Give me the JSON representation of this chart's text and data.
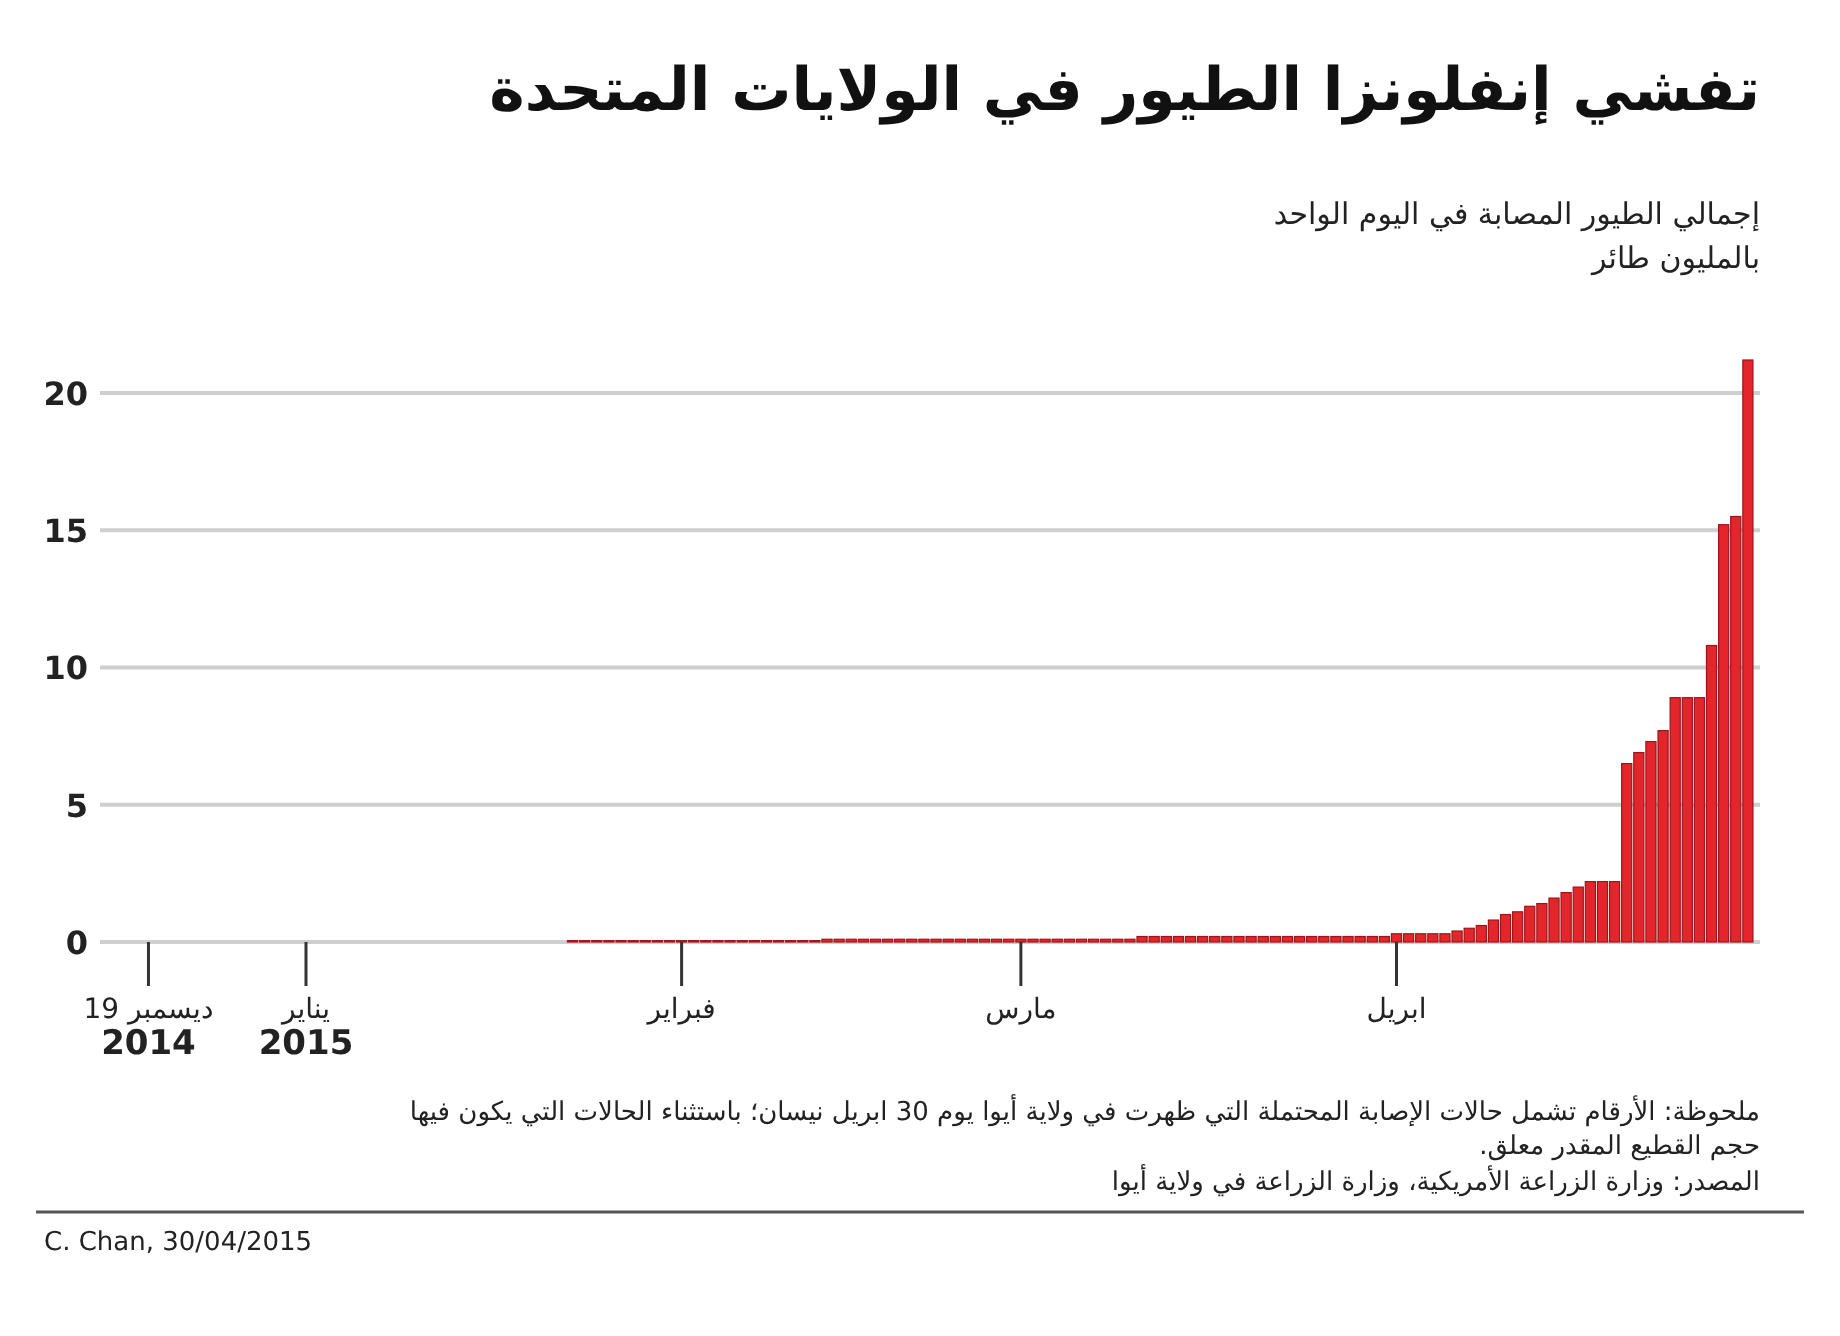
{
  "chart_data": {
    "type": "bar",
    "title": "تفشي إنفلونزا الطيور في الولايات المتحدة",
    "subtitle": "إجمالي الطيور المصابة في اليوم الواحد",
    "ylabel": "بالمليون طائر",
    "x": [
      "2015-01-23",
      "2015-01-24",
      "2015-01-25",
      "2015-01-26",
      "2015-01-27",
      "2015-01-28",
      "2015-01-29",
      "2015-01-30",
      "2015-01-31",
      "2015-02-01",
      "2015-02-02",
      "2015-02-03",
      "2015-02-04",
      "2015-02-05",
      "2015-02-06",
      "2015-02-07",
      "2015-02-08",
      "2015-02-09",
      "2015-02-10",
      "2015-02-11",
      "2015-02-12",
      "2015-02-13",
      "2015-02-14",
      "2015-02-15",
      "2015-02-16",
      "2015-02-17",
      "2015-02-18",
      "2015-02-19",
      "2015-02-20",
      "2015-02-21",
      "2015-02-22",
      "2015-02-23",
      "2015-02-24",
      "2015-02-25",
      "2015-02-26",
      "2015-02-27",
      "2015-02-28",
      "2015-03-01",
      "2015-03-02",
      "2015-03-03",
      "2015-03-04",
      "2015-03-05",
      "2015-03-06",
      "2015-03-07",
      "2015-03-08",
      "2015-03-09",
      "2015-03-10",
      "2015-03-11",
      "2015-03-12",
      "2015-03-13",
      "2015-03-14",
      "2015-03-15",
      "2015-03-16",
      "2015-03-17",
      "2015-03-18",
      "2015-03-19",
      "2015-03-20",
      "2015-03-21",
      "2015-03-22",
      "2015-03-23",
      "2015-03-24",
      "2015-03-25",
      "2015-03-26",
      "2015-03-27",
      "2015-03-28",
      "2015-03-29",
      "2015-03-30",
      "2015-03-31",
      "2015-04-01",
      "2015-04-02",
      "2015-04-03",
      "2015-04-04",
      "2015-04-05",
      "2015-04-06",
      "2015-04-07",
      "2015-04-08",
      "2015-04-09",
      "2015-04-10",
      "2015-04-11",
      "2015-04-12",
      "2015-04-13",
      "2015-04-14",
      "2015-04-15",
      "2015-04-16",
      "2015-04-17",
      "2015-04-18",
      "2015-04-19",
      "2015-04-20",
      "2015-04-21",
      "2015-04-22",
      "2015-04-23",
      "2015-04-24",
      "2015-04-25",
      "2015-04-26",
      "2015-04-27",
      "2015-04-28",
      "2015-04-29",
      "2015-04-30"
    ],
    "values": [
      0.05,
      0.05,
      0.05,
      0.05,
      0.05,
      0.05,
      0.05,
      0.05,
      0.05,
      0.05,
      0.05,
      0.05,
      0.05,
      0.05,
      0.05,
      0.05,
      0.05,
      0.05,
      0.05,
      0.05,
      0.05,
      0.1,
      0.1,
      0.1,
      0.1,
      0.1,
      0.1,
      0.1,
      0.1,
      0.1,
      0.1,
      0.1,
      0.1,
      0.1,
      0.1,
      0.1,
      0.1,
      0.1,
      0.1,
      0.1,
      0.1,
      0.1,
      0.1,
      0.1,
      0.1,
      0.1,
      0.1,
      0.2,
      0.2,
      0.2,
      0.2,
      0.2,
      0.2,
      0.2,
      0.2,
      0.2,
      0.2,
      0.2,
      0.2,
      0.2,
      0.2,
      0.2,
      0.2,
      0.2,
      0.2,
      0.2,
      0.2,
      0.2,
      0.3,
      0.3,
      0.3,
      0.3,
      0.3,
      0.4,
      0.5,
      0.6,
      0.8,
      1.0,
      1.1,
      1.3,
      1.4,
      1.6,
      1.8,
      2.0,
      2.2,
      2.2,
      2.2,
      6.5,
      6.9,
      7.3,
      7.7,
      8.9,
      8.9,
      8.9,
      10.8,
      15.2,
      15.5,
      21.2
    ],
    "color": "#e3262b",
    "xlim": [
      "2014-12-15",
      "2015-05-01"
    ],
    "xticks": [
      {
        "value": "2014-12-19",
        "label": "19 ديسمبر\n2014"
      },
      {
        "value": "2015-01-01",
        "label": "يناير\n2015"
      },
      {
        "value": "2015-02-01",
        "label": "فبراير"
      },
      {
        "value": "2015-03-01",
        "label": "مارس"
      },
      {
        "value": "2015-04-01",
        "label": "ابريل"
      }
    ],
    "ylim": [
      0,
      21.2
    ],
    "yticks": [
      0,
      5,
      10,
      15,
      20
    ],
    "grid": "y",
    "annotations": [
      "ملحوظة: الأرقام تشمل حالات الإصابة المحتملة التي ظهرت في ولاية أيوا يوم 30 ابريل نيسان؛ باستثناء الحالات التي يكون فيها حجم القطيع المقدر معلق.",
      "المصدر: وزارة الزراعة الأمريكية، وزارة الزراعة في ولاية أيوا",
      "C. Chan, 30/04/2015"
    ]
  }
}
